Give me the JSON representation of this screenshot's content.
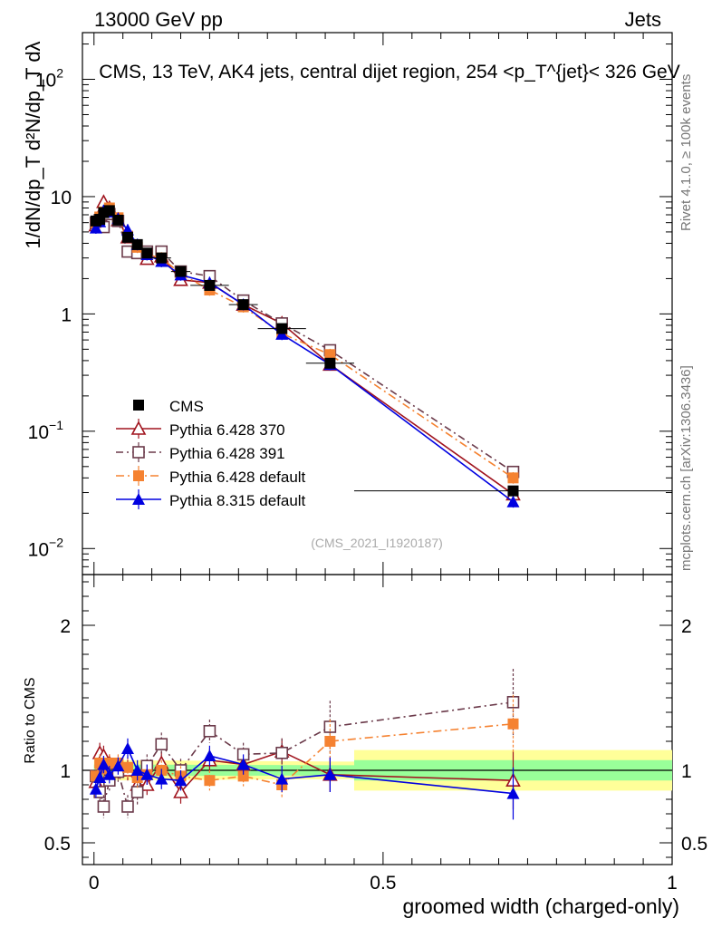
{
  "header": {
    "left": "13000 GeV pp",
    "right": "Jets",
    "title": "CMS, 13 TeV, AK4 jets, central dijet region, 254 <p_T^{jet}< 326 GeV"
  },
  "side_labels": {
    "rivet": "Rivet 4.1.0, ≥ 100k events",
    "mcplots": "mcplots.cern.ch [arXiv:1306.3436]"
  },
  "analysis_id": "(CMS_2021_I1920187)",
  "colors": {
    "cms": "#000000",
    "p370": "#a0141e",
    "p391": "#6b3a4a",
    "pdefault": "#f58231",
    "p8": "#0000e0",
    "band_yellow": "#ffff99",
    "band_green": "#99ff99"
  },
  "chart_data": [
    {
      "type": "line",
      "panel": "main",
      "xlabel": "groomed width (charged-only)",
      "ylabel": "1/dN/dp_T d²N/dp_T dλ",
      "yscale": "log",
      "xlim": [
        -0.02,
        1.0
      ],
      "ylim": [
        0.006,
        250
      ],
      "yticks": [
        {
          "value": 0.01,
          "label": "10",
          "sup": "−2"
        },
        {
          "value": 0.1,
          "label": "10",
          "sup": "−1"
        },
        {
          "value": 1,
          "label": "1",
          "sup": ""
        },
        {
          "value": 10,
          "label": "10",
          "sup": ""
        },
        {
          "value": 100,
          "label": "10",
          "sup": "2"
        }
      ],
      "bin_edges": [
        0,
        0.0067,
        0.0133,
        0.02,
        0.0333,
        0.05,
        0.0667,
        0.0833,
        0.1,
        0.1333,
        0.1667,
        0.2333,
        0.2833,
        0.3667,
        0.45,
        1.0
      ],
      "x": [
        0.0033,
        0.01,
        0.0167,
        0.0267,
        0.0417,
        0.0583,
        0.075,
        0.0917,
        0.1167,
        0.15,
        0.2,
        0.2583,
        0.325,
        0.4083,
        0.725
      ],
      "series": [
        {
          "name": "CMS",
          "key": "cms",
          "marker": "square-filled",
          "dash": "none",
          "values": [
            6.2,
            6.4,
            7.3,
            7.6,
            6.3,
            4.5,
            3.9,
            3.3,
            3.0,
            2.3,
            1.75,
            1.2,
            0.75,
            0.38,
            0.031
          ]
        },
        {
          "name": "Pythia 6.428 370",
          "key": "p370",
          "marker": "triangle-open",
          "dash": "none",
          "values": [
            5.7,
            7.0,
            9.0,
            8.0,
            6.3,
            4.5,
            3.6,
            2.95,
            3.1,
            1.95,
            1.85,
            1.2,
            0.83,
            0.37,
            0.029
          ]
        },
        {
          "name": "Pythia 6.428 391",
          "key": "p391",
          "marker": "square-open",
          "dash": "8,4,2,4",
          "values": [
            6.0,
            6.3,
            5.5,
            7.1,
            6.2,
            3.4,
            3.3,
            3.4,
            3.4,
            2.3,
            2.1,
            1.3,
            0.83,
            0.49,
            0.045
          ]
        },
        {
          "name": "Pythia 6.428 default",
          "key": "pdefault",
          "marker": "square-filled",
          "dash": "9,4,2,4",
          "values": [
            6.0,
            6.7,
            7.4,
            8.0,
            6.6,
            4.6,
            3.7,
            3.2,
            3.0,
            2.2,
            1.6,
            1.15,
            0.68,
            0.45,
            0.04
          ]
        },
        {
          "name": "Pythia 8.315 default",
          "key": "p8",
          "marker": "triangle-filled",
          "dash": "none",
          "values": [
            5.4,
            6.1,
            7.6,
            7.4,
            6.5,
            5.2,
            3.9,
            3.2,
            2.8,
            2.15,
            1.85,
            1.2,
            0.67,
            0.37,
            0.025
          ]
        }
      ],
      "legend": {
        "placement": "lower-left"
      }
    },
    {
      "type": "line",
      "panel": "ratio",
      "ylabel": "Ratio to CMS",
      "ylim": [
        0.35,
        2.35
      ],
      "yticks": [
        {
          "value": 0.5,
          "label": "0.5"
        },
        {
          "value": 1,
          "label": "1"
        },
        {
          "value": 2,
          "label": "2"
        }
      ],
      "xticks": [
        {
          "value": 0,
          "label": "0"
        },
        {
          "value": 0.5,
          "label": "0.5"
        },
        {
          "value": 1,
          "label": "1"
        }
      ],
      "band": {
        "x": [
          0,
          0.45,
          0.45,
          1.0
        ],
        "yellow_half": [
          0.07,
          0.06,
          0.14,
          0.14
        ],
        "green_half": [
          0.04,
          0.035,
          0.07,
          0.07
        ]
      },
      "series": [
        {
          "key": "p370",
          "values": [
            0.92,
            1.12,
            1.1,
            1.05,
            1.0,
            1.0,
            0.9,
            0.9,
            1.05,
            0.85,
            1.07,
            1.04,
            1.13,
            0.97,
            0.93
          ],
          "errors": [
            0.06,
            0.07,
            0.07,
            0.06,
            0.06,
            0.07,
            0.07,
            0.07,
            0.08,
            0.08,
            0.08,
            0.08,
            0.09,
            0.12,
            0.2
          ]
        },
        {
          "key": "p391",
          "values": [
            0.96,
            0.85,
            0.75,
            0.93,
            0.99,
            0.75,
            0.85,
            1.03,
            1.18,
            1.0,
            1.27,
            1.11,
            1.12,
            1.3,
            1.47
          ],
          "errors": [
            0.07,
            0.08,
            0.08,
            0.07,
            0.07,
            0.08,
            0.09,
            0.08,
            0.08,
            0.08,
            0.08,
            0.08,
            0.1,
            0.18,
            0.23
          ]
        },
        {
          "key": "pdefault",
          "values": [
            0.96,
            1.05,
            1.01,
            1.05,
            1.05,
            1.02,
            0.95,
            0.97,
            1.0,
            0.96,
            0.93,
            0.96,
            0.9,
            1.2,
            1.32
          ],
          "errors": [
            0.06,
            0.06,
            0.06,
            0.06,
            0.06,
            0.07,
            0.07,
            0.07,
            0.07,
            0.07,
            0.07,
            0.07,
            0.09,
            0.15,
            0.2
          ]
        },
        {
          "key": "p8",
          "values": [
            0.87,
            0.95,
            1.04,
            0.97,
            1.03,
            1.15,
            1.0,
            0.97,
            0.94,
            0.93,
            1.1,
            1.04,
            0.94,
            0.97,
            0.84
          ],
          "errors": [
            0.06,
            0.06,
            0.06,
            0.06,
            0.06,
            0.07,
            0.07,
            0.07,
            0.07,
            0.07,
            0.07,
            0.07,
            0.09,
            0.12,
            0.18
          ]
        }
      ]
    }
  ]
}
